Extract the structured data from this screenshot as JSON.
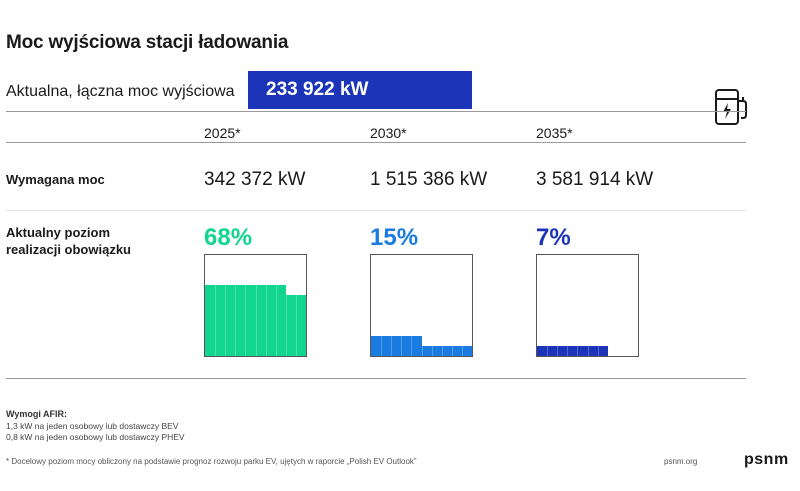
{
  "title": "Moc wyjściowa stacji ładowania",
  "current": {
    "label": "Aktualna, łączna moc wyjściowa",
    "value": "233 922 kW"
  },
  "icons": {
    "charger": "ev-charger-icon"
  },
  "rows": {
    "required_label": "Wymagana moc",
    "progress_label_line1": "Aktualny poziom",
    "progress_label_line2": "realizacji obowiązku"
  },
  "chart_data": {
    "type": "table",
    "columns": [
      {
        "year": "2025*",
        "required": "342 372 kW",
        "percent_label": "68%",
        "percent": 68,
        "color": "#12d68f"
      },
      {
        "year": "2030*",
        "required": "1 515 386 kW",
        "percent_label": "15%",
        "percent": 15,
        "color": "#1a7be0"
      },
      {
        "year": "2035*",
        "required": "3 581 914 kW",
        "percent_label": "7%",
        "percent": 7,
        "color": "#1c35b8"
      }
    ]
  },
  "notes": {
    "title": "Wymogi AFIR:",
    "line1": "1,3 kW na jeden osobowy lub dostawczy BEV",
    "line2": "0,8 kW na jeden osobowy lub dostawczy PHEV"
  },
  "footnote": "* Docelowy poziom mocy obliczony na podstawie prognoz rozwoju parku EV, ujętych w raporcie „Polish EV Outlook”",
  "site": "psnm.org",
  "logo": "psnm"
}
